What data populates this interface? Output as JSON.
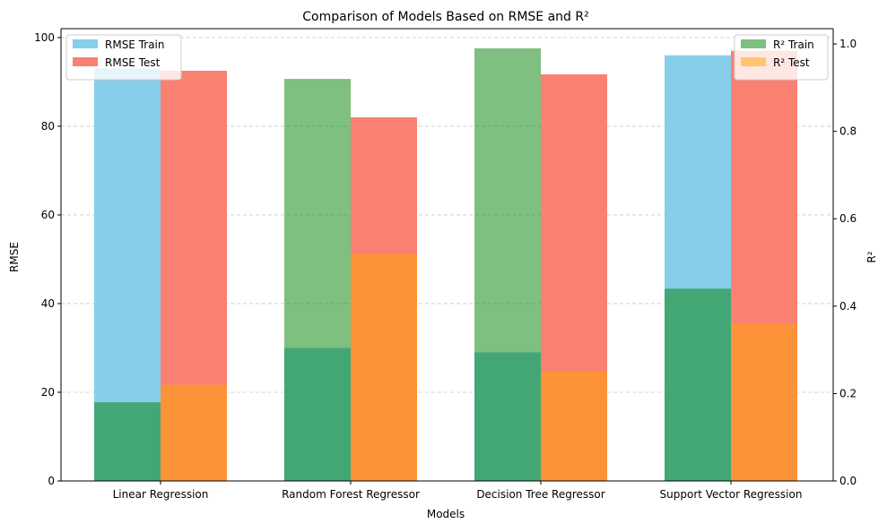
{
  "chart_data": {
    "type": "bar",
    "title": "Comparison of Models Based on RMSE and R²",
    "xlabel": "Models",
    "ylabel": "RMSE",
    "y2label": "R²",
    "categories": [
      "Linear Regression",
      "Random Forest Regressor",
      "Decision Tree Regressor",
      "Support Vector Regression"
    ],
    "ylim": [
      0,
      102
    ],
    "y2lim": [
      0,
      1.035
    ],
    "yticks": [
      0,
      20,
      40,
      60,
      80,
      100
    ],
    "y2ticks": [
      0.0,
      0.2,
      0.4,
      0.6,
      0.8,
      1.0
    ],
    "grid": "horizontal dashed",
    "series": [
      {
        "name": "RMSE Train",
        "axis": "left",
        "slot": "left",
        "color": "#87ceeb",
        "values": [
          93.0,
          30.0,
          29.0,
          96.0
        ]
      },
      {
        "name": "RMSE Test",
        "axis": "left",
        "slot": "right",
        "color": "#fa8072",
        "values": [
          92.5,
          82.0,
          91.7,
          97.0
        ]
      },
      {
        "name": "R² Train",
        "axis": "right",
        "slot": "left",
        "color": "#008000",
        "opacity": 0.5,
        "values": [
          0.18,
          0.92,
          0.99,
          0.44
        ]
      },
      {
        "name": "R² Test",
        "axis": "right",
        "slot": "right",
        "color": "#ffa500",
        "opacity": 0.5,
        "values": [
          0.22,
          0.52,
          0.25,
          0.36
        ]
      }
    ],
    "legend_left": {
      "placement": "upper-left",
      "entries": [
        "RMSE Train",
        "RMSE Test"
      ]
    },
    "legend_right": {
      "placement": "upper-right",
      "entries": [
        "R² Train",
        "R² Test"
      ]
    }
  }
}
